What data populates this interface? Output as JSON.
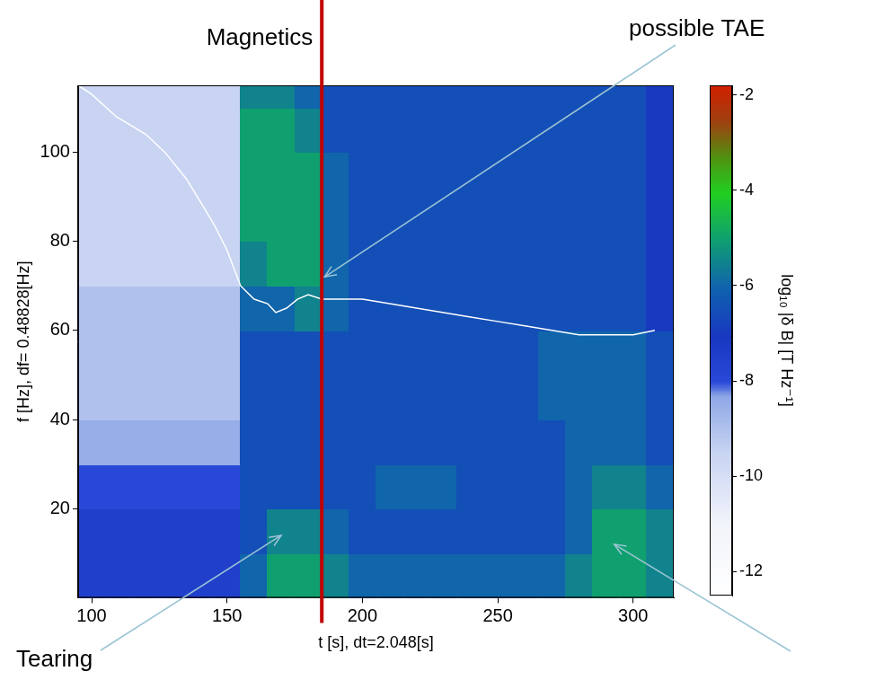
{
  "chart_data": {
    "type": "heatmap",
    "x_label": "t [s], dt=2.048[s]",
    "y_label": "f [Hz], df= 0.48828[Hz]",
    "xlim": [
      95,
      315
    ],
    "xticks": [
      100,
      150,
      200,
      250,
      300
    ],
    "ylim": [
      0,
      115
    ],
    "yticks": [
      20,
      40,
      60,
      80,
      100
    ],
    "grid": false,
    "x_edges": [
      95,
      105,
      115,
      125,
      135,
      145,
      155,
      165,
      175,
      185,
      195,
      205,
      215,
      225,
      235,
      245,
      255,
      265,
      275,
      285,
      295,
      305,
      315
    ],
    "y_edges": [
      0,
      10,
      20,
      30,
      40,
      50,
      60,
      70,
      80,
      90,
      100,
      110,
      115
    ],
    "cells": [
      [
        -7.5,
        -7.5,
        -7.5,
        -7.5,
        -7.5,
        -7.5,
        -6,
        -5,
        -5,
        -5.5,
        -6,
        -6,
        -6,
        -6,
        -6,
        -6,
        -6,
        -6,
        -5.5,
        -5,
        -5,
        -5.5
      ],
      [
        -7.5,
        -7.5,
        -7.5,
        -7.5,
        -7.5,
        -7.5,
        -6.5,
        -5.5,
        -5.5,
        -6,
        -6.5,
        -6.5,
        -6.5,
        -6.5,
        -6.5,
        -6.5,
        -6.5,
        -6.5,
        -6,
        -5,
        -5,
        -5.5
      ],
      [
        -8,
        -8,
        -8,
        -8,
        -8,
        -8,
        -6.5,
        -6.5,
        -6.5,
        -6.5,
        -6.5,
        -6,
        -6,
        -6,
        -6.5,
        -6.5,
        -6.5,
        -6.5,
        -6,
        -5.5,
        -5.5,
        -6
      ],
      [
        -8.5,
        -8.5,
        -8.5,
        -8.5,
        -8.5,
        -8.5,
        -6.5,
        -6.5,
        -6.5,
        -6.5,
        -6.5,
        -6.5,
        -6.5,
        -6.5,
        -6.5,
        -6.5,
        -6.5,
        -6.5,
        -6,
        -6,
        -6,
        -6.5
      ],
      [
        -9,
        -9,
        -9,
        -9,
        -9,
        -9,
        -6.5,
        -6.5,
        -6.5,
        -6.5,
        -6.5,
        -6.5,
        -6.5,
        -6.5,
        -6.5,
        -6.5,
        -6.5,
        -6,
        -6,
        -6,
        -6,
        -6.5
      ],
      [
        -9,
        -9,
        -9,
        -9,
        -9,
        -9,
        -6.5,
        -6.5,
        -6.5,
        -6.5,
        -6.5,
        -6.5,
        -6.5,
        -6.5,
        -6.5,
        -6.5,
        -6.5,
        -6,
        -6,
        -6,
        -6,
        -6.5
      ],
      [
        -9,
        -9,
        -9,
        -9,
        -9,
        -9,
        -6,
        -6,
        -5.5,
        -6,
        -6.5,
        -6.5,
        -6.5,
        -6.5,
        -6.5,
        -6.5,
        -6.5,
        -6.5,
        -6.5,
        -6.5,
        -6.5,
        -7
      ],
      [
        -9.5,
        -9.5,
        -9.5,
        -9.5,
        -9.5,
        -9.5,
        -5.5,
        -5,
        -5,
        -6,
        -6.5,
        -6.5,
        -6.5,
        -6.5,
        -6.5,
        -6.5,
        -6.5,
        -6.5,
        -6.5,
        -6.5,
        -6.5,
        -7
      ],
      [
        -9.5,
        -9.5,
        -9.5,
        -9.5,
        -9.5,
        -9.5,
        -5,
        -5,
        -5,
        -6,
        -6.5,
        -6.5,
        -6.5,
        -6.5,
        -6.5,
        -6.5,
        -6.5,
        -6.5,
        -6.5,
        -6.5,
        -6.5,
        -7
      ],
      [
        -9.5,
        -9.5,
        -9.5,
        -9.5,
        -9.5,
        -9.5,
        -5,
        -5,
        -5,
        -6,
        -6.5,
        -6.5,
        -6.5,
        -6.5,
        -6.5,
        -6.5,
        -6.5,
        -6.5,
        -6.5,
        -6.5,
        -6.5,
        -7
      ],
      [
        -9.5,
        -9.5,
        -9.5,
        -9.5,
        -9.5,
        -9.5,
        -5,
        -5,
        -5.5,
        -6.5,
        -6.5,
        -6.5,
        -6.5,
        -6.5,
        -6.5,
        -6.5,
        -6.5,
        -6.5,
        -6.5,
        -6.5,
        -6.5,
        -7
      ],
      [
        -9.5,
        -9.5,
        -9.5,
        -9.5,
        -9.5,
        -9.5,
        -5.5,
        -5.5,
        -6,
        -6.5,
        -6.5,
        -6.5,
        -6.5,
        -6.5,
        -6.5,
        -6.5,
        -6.5,
        -6.5,
        -6.5,
        -6.5,
        -6.5,
        -7
      ]
    ],
    "colorbar": {
      "label": "log₁₀ |δ B| [T Hz⁻¹]",
      "lim": [
        -12.5,
        -1.8
      ],
      "ticks": [
        -2,
        -4,
        -6,
        -8,
        -10,
        -12
      ]
    },
    "series": [
      {
        "type": "line",
        "color": "#ffffff",
        "x": [
          95,
          100,
          109,
          120,
          127,
          135,
          141,
          145,
          150,
          155,
          160,
          165,
          168,
          172,
          176,
          180,
          185,
          190,
          200,
          210,
          220,
          230,
          240,
          250,
          260,
          270,
          280,
          290,
          300,
          308
        ],
        "values": [
          115,
          113,
          108,
          104,
          100,
          94,
          88,
          84,
          78,
          70,
          67,
          66,
          64,
          65,
          67,
          68,
          67,
          67,
          67,
          66,
          65,
          64,
          63,
          62,
          61,
          60,
          59,
          59,
          59,
          60
        ]
      }
    ],
    "vertical_line": {
      "x": 185,
      "text": "Magnetics",
      "color": "#c00000"
    },
    "annotations": [
      {
        "text": "possible TAE",
        "x": 186,
        "y": 72
      },
      {
        "text": "Tearing",
        "x": 170,
        "y": 14
      },
      {
        "x": 293,
        "y": 12
      }
    ]
  }
}
